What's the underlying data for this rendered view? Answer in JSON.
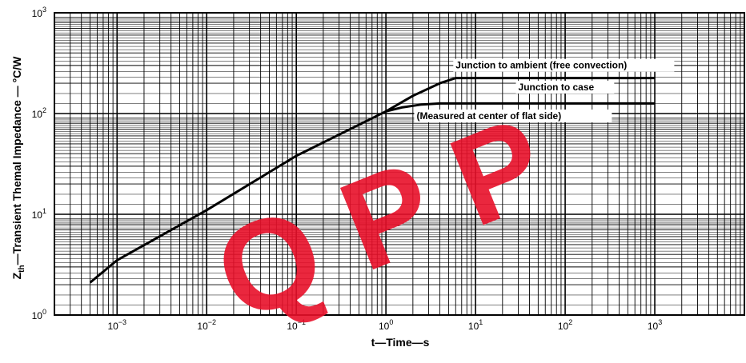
{
  "chart_data": {
    "type": "line",
    "title": "",
    "xlabel": "t—Time—s",
    "ylabel": "Z",
    "ylabel_sub": "th",
    "ylabel_rest": "—Transient Themal Impedance — °C/W",
    "x_scale": "log",
    "y_scale": "log",
    "xlim": [
      0.0002,
      10000
    ],
    "ylim": [
      1,
      1000
    ],
    "grid": true,
    "x_ticks": [
      {
        "value": 0.001,
        "base": "10",
        "exp": "−3"
      },
      {
        "value": 0.01,
        "base": "10",
        "exp": "−2"
      },
      {
        "value": 0.1,
        "base": "10",
        "exp": "−1"
      },
      {
        "value": 1,
        "base": "10",
        "exp": "0"
      },
      {
        "value": 10,
        "base": "10",
        "exp": "1"
      },
      {
        "value": 100,
        "base": "10",
        "exp": "2"
      },
      {
        "value": 1000,
        "base": "10",
        "exp": "3"
      }
    ],
    "y_ticks": [
      {
        "value": 1,
        "base": "10",
        "exp": "0"
      },
      {
        "value": 10,
        "base": "10",
        "exp": "1"
      },
      {
        "value": 100,
        "base": "10",
        "exp": "2"
      },
      {
        "value": 1000,
        "base": "10",
        "exp": "3"
      }
    ],
    "series": [
      {
        "name": "Junction to ambient (free convection)",
        "x": [
          0.0005,
          0.001,
          0.01,
          0.1,
          1,
          2,
          4,
          6,
          10,
          100,
          1000
        ],
        "y": [
          2.1,
          3.5,
          11,
          38,
          105,
          150,
          200,
          225,
          225,
          225,
          225
        ]
      },
      {
        "name": "Junction to case",
        "x": [
          1,
          1.5,
          2.5,
          4,
          10,
          100,
          1000
        ],
        "y": [
          105,
          115,
          123,
          126,
          126,
          126,
          126
        ]
      }
    ],
    "annotations": [
      {
        "text": "Junction to ambient (free convection)",
        "x": 6,
        "y": 280
      },
      {
        "text": "Junction to case",
        "x": 30,
        "y": 170
      },
      {
        "text": "(Measured at center of flat side)",
        "x": 2.2,
        "y": 88
      }
    ]
  },
  "watermark": {
    "text": "Q  P  P",
    "color": "#e8102a"
  }
}
